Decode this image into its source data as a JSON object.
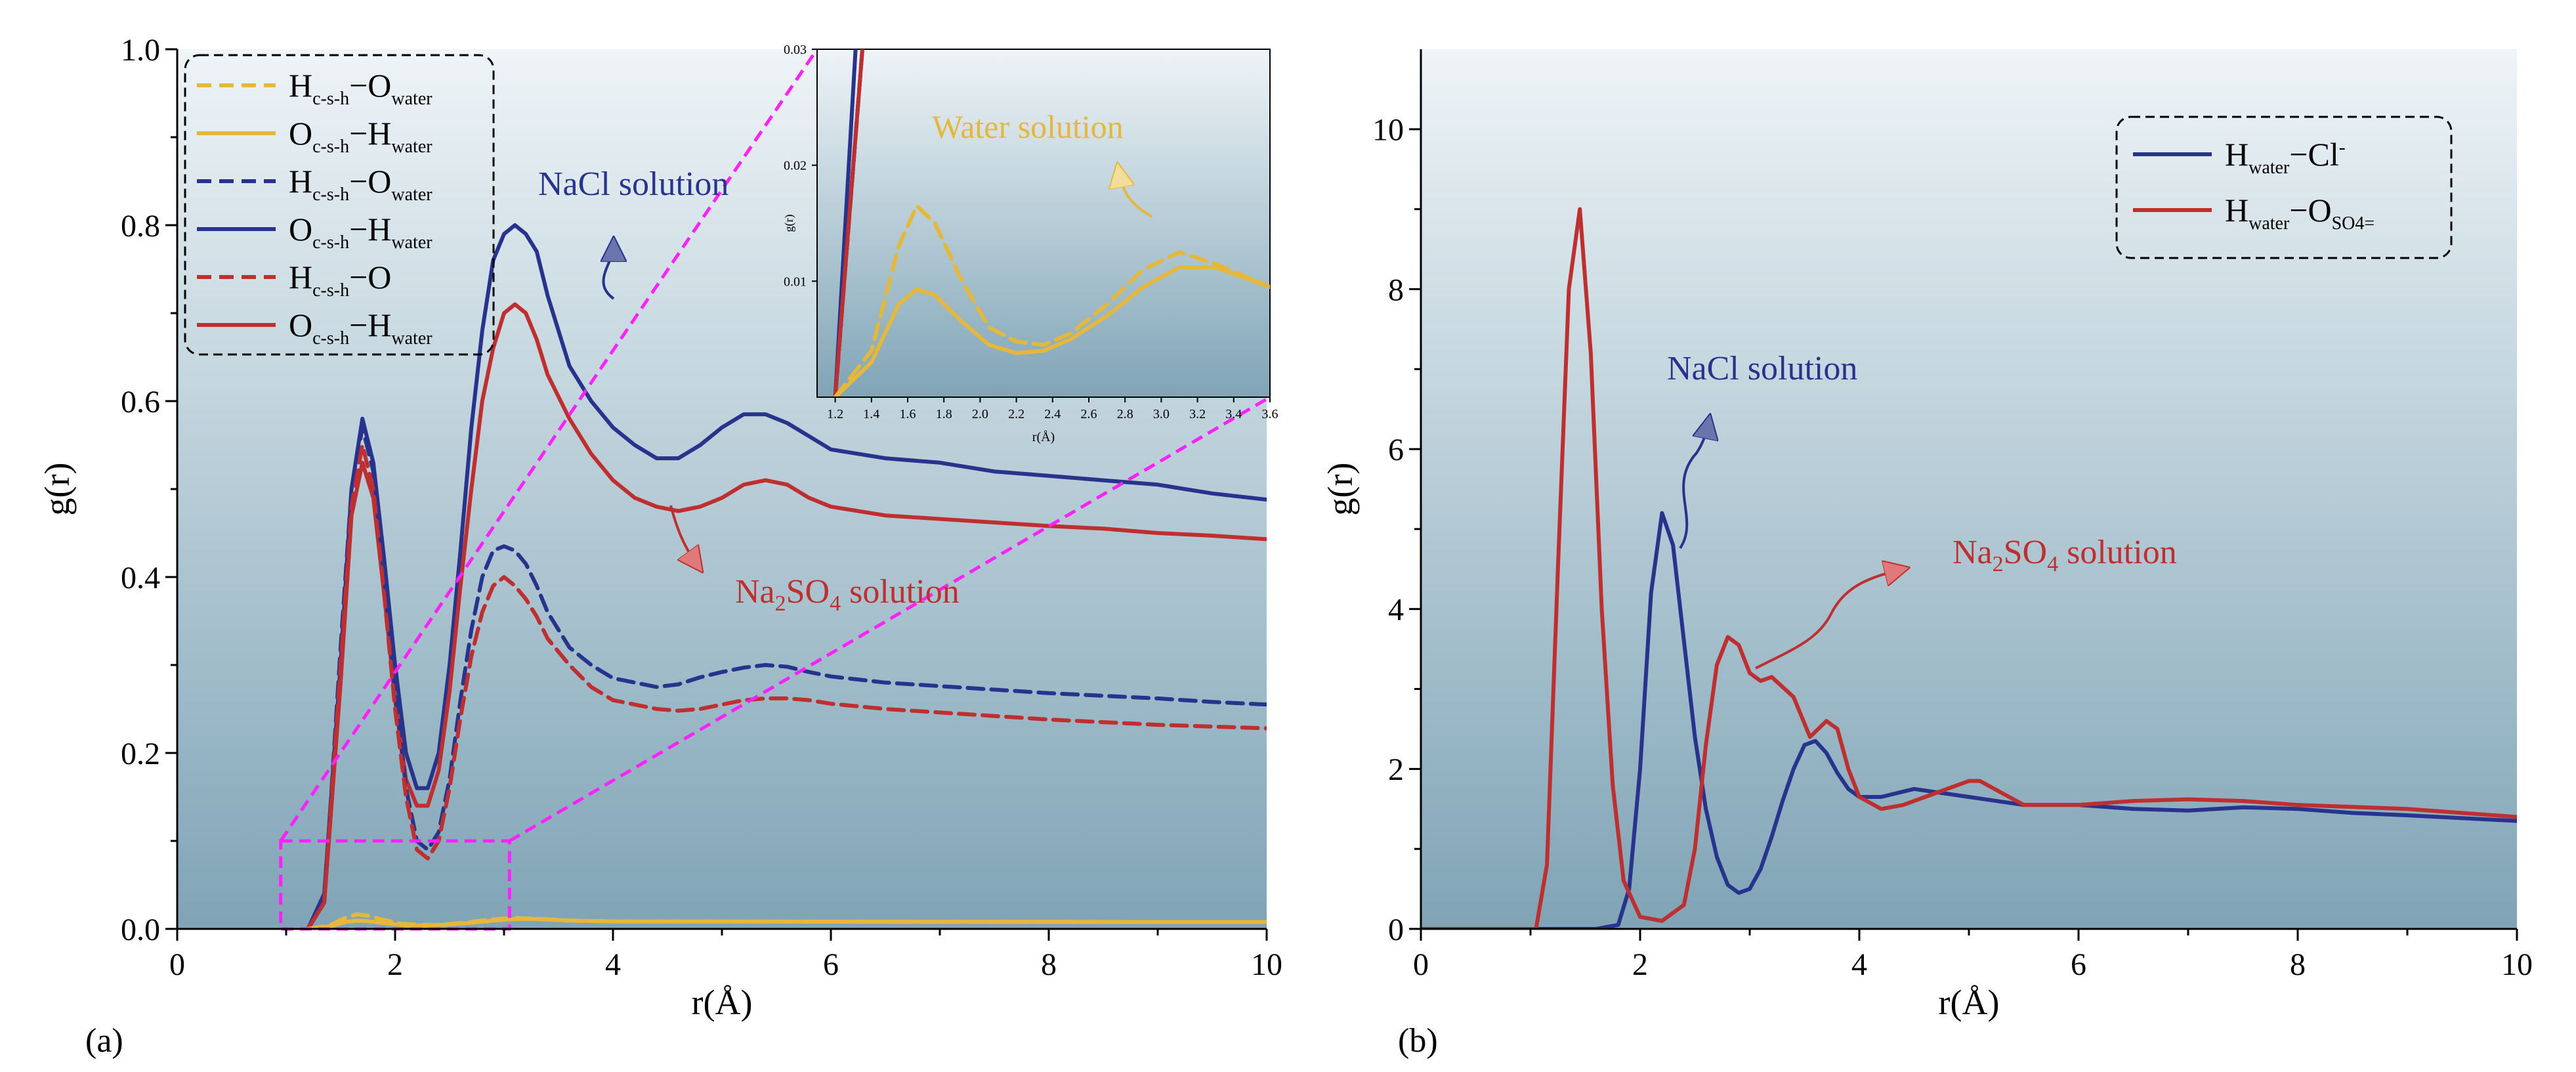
{
  "colors": {
    "bg_top": "#eef4f7",
    "bg_bottom": "#7fa4b6",
    "yellow": "#e6b83a",
    "blue": "#27338c",
    "red": "#bf2f2f",
    "magenta": "#ff22ff"
  },
  "chart_data": [
    {
      "id": "a",
      "type": "line",
      "panel_label": "(a)",
      "xlabel": "r(Å)",
      "ylabel": "g(r)",
      "xlim": [
        0,
        10
      ],
      "ylim": [
        0,
        1.0
      ],
      "xticks": [
        "0",
        "2",
        "4",
        "6",
        "8",
        "10"
      ],
      "yticks": [
        "0.0",
        "0.2",
        "0.4",
        "0.6",
        "0.8",
        "1.0"
      ],
      "legend": {
        "position": "top-left",
        "entries": [
          {
            "main1": "H",
            "sub1": "c-s-h",
            "dash": "−",
            "main2": "O",
            "sub2": "water",
            "color": "yellow",
            "style": "dashed"
          },
          {
            "main1": "O",
            "sub1": "c-s-h",
            "dash": "−",
            "main2": "H",
            "sub2": "water",
            "color": "yellow",
            "style": "solid"
          },
          {
            "main1": "H",
            "sub1": "c-s-h",
            "dash": "−",
            "main2": "O",
            "sub2": "water",
            "color": "blue",
            "style": "dashed"
          },
          {
            "main1": "O",
            "sub1": "c-s-h",
            "dash": "−",
            "main2": "H",
            "sub2": "water",
            "color": "blue",
            "style": "solid"
          },
          {
            "main1": "H",
            "sub1": "c-s-h",
            "dash": "−",
            "main2": "O",
            "sub2": "",
            "color": "red",
            "style": "dashed"
          },
          {
            "main1": "O",
            "sub1": "c-s-h",
            "dash": "−",
            "main2": "H",
            "sub2": "water",
            "color": "red",
            "style": "solid"
          }
        ]
      },
      "series": [
        {
          "name": "NaCl O(c-s-h)-H(water)",
          "color": "blue",
          "style": "solid",
          "x": [
            1.2,
            1.35,
            1.5,
            1.6,
            1.7,
            1.8,
            1.9,
            2.0,
            2.1,
            2.2,
            2.3,
            2.4,
            2.5,
            2.6,
            2.7,
            2.8,
            2.9,
            3.0,
            3.1,
            3.2,
            3.3,
            3.4,
            3.6,
            3.8,
            4.0,
            4.2,
            4.4,
            4.6,
            4.8,
            5.0,
            5.2,
            5.4,
            5.6,
            5.8,
            6.0,
            6.5,
            7.0,
            7.5,
            8.0,
            8.5,
            9.0,
            9.5,
            10.0
          ],
          "y": [
            0.0,
            0.04,
            0.3,
            0.5,
            0.58,
            0.53,
            0.42,
            0.3,
            0.2,
            0.16,
            0.16,
            0.2,
            0.3,
            0.43,
            0.57,
            0.68,
            0.76,
            0.79,
            0.8,
            0.79,
            0.77,
            0.72,
            0.64,
            0.6,
            0.57,
            0.55,
            0.535,
            0.535,
            0.55,
            0.57,
            0.585,
            0.585,
            0.575,
            0.56,
            0.545,
            0.535,
            0.53,
            0.52,
            0.515,
            0.51,
            0.505,
            0.495,
            0.488
          ]
        },
        {
          "name": "Na2SO4 O(c-s-h)-H(water)",
          "color": "red",
          "style": "solid",
          "x": [
            1.2,
            1.35,
            1.5,
            1.6,
            1.7,
            1.8,
            1.9,
            2.0,
            2.1,
            2.2,
            2.3,
            2.4,
            2.5,
            2.6,
            2.7,
            2.8,
            2.9,
            3.0,
            3.1,
            3.2,
            3.3,
            3.4,
            3.6,
            3.8,
            4.0,
            4.2,
            4.4,
            4.6,
            4.8,
            5.0,
            5.2,
            5.4,
            5.6,
            5.8,
            6.0,
            6.5,
            7.0,
            7.5,
            8.0,
            8.5,
            9.0,
            9.5,
            10.0
          ],
          "y": [
            0.0,
            0.03,
            0.28,
            0.47,
            0.53,
            0.49,
            0.38,
            0.26,
            0.17,
            0.14,
            0.14,
            0.18,
            0.27,
            0.39,
            0.5,
            0.6,
            0.66,
            0.7,
            0.71,
            0.7,
            0.67,
            0.63,
            0.58,
            0.54,
            0.51,
            0.49,
            0.48,
            0.475,
            0.48,
            0.49,
            0.505,
            0.51,
            0.505,
            0.49,
            0.48,
            0.47,
            0.466,
            0.462,
            0.458,
            0.455,
            0.45,
            0.447,
            0.443
          ]
        },
        {
          "name": "NaCl H(c-s-h)-O(water)",
          "color": "blue",
          "style": "dashed",
          "x": [
            1.2,
            1.35,
            1.5,
            1.6,
            1.7,
            1.8,
            1.9,
            2.0,
            2.1,
            2.2,
            2.3,
            2.4,
            2.5,
            2.6,
            2.7,
            2.8,
            2.9,
            3.0,
            3.1,
            3.2,
            3.3,
            3.4,
            3.6,
            3.8,
            4.0,
            4.2,
            4.4,
            4.6,
            4.8,
            5.0,
            5.2,
            5.4,
            5.6,
            5.8,
            6.0,
            6.5,
            7.0,
            7.5,
            8.0,
            8.5,
            9.0,
            9.5,
            10.0
          ],
          "y": [
            0.0,
            0.03,
            0.32,
            0.5,
            0.57,
            0.52,
            0.4,
            0.27,
            0.16,
            0.1,
            0.09,
            0.11,
            0.17,
            0.26,
            0.34,
            0.4,
            0.43,
            0.435,
            0.43,
            0.415,
            0.39,
            0.36,
            0.32,
            0.3,
            0.285,
            0.28,
            0.275,
            0.278,
            0.286,
            0.292,
            0.297,
            0.3,
            0.298,
            0.292,
            0.287,
            0.28,
            0.276,
            0.272,
            0.268,
            0.265,
            0.262,
            0.258,
            0.255
          ]
        },
        {
          "name": "Na2SO4 H(c-s-h)-O",
          "color": "red",
          "style": "dashed",
          "x": [
            1.2,
            1.35,
            1.5,
            1.6,
            1.7,
            1.8,
            1.9,
            2.0,
            2.1,
            2.2,
            2.3,
            2.4,
            2.5,
            2.6,
            2.7,
            2.8,
            2.9,
            3.0,
            3.1,
            3.2,
            3.3,
            3.4,
            3.6,
            3.8,
            4.0,
            4.2,
            4.4,
            4.6,
            4.8,
            5.0,
            5.2,
            5.4,
            5.6,
            5.8,
            6.0,
            6.5,
            7.0,
            7.5,
            8.0,
            8.5,
            9.0,
            9.5,
            10.0
          ],
          "y": [
            0.0,
            0.03,
            0.3,
            0.48,
            0.55,
            0.5,
            0.38,
            0.25,
            0.15,
            0.09,
            0.08,
            0.1,
            0.16,
            0.24,
            0.31,
            0.36,
            0.39,
            0.4,
            0.39,
            0.375,
            0.355,
            0.33,
            0.3,
            0.275,
            0.26,
            0.255,
            0.25,
            0.248,
            0.25,
            0.255,
            0.26,
            0.262,
            0.262,
            0.26,
            0.256,
            0.25,
            0.246,
            0.242,
            0.238,
            0.235,
            0.232,
            0.23,
            0.228
          ]
        },
        {
          "name": "Water H(c-s-h)-O(water)",
          "color": "yellow",
          "style": "dashed",
          "x": [
            1.2,
            1.4,
            1.55,
            1.65,
            1.75,
            1.9,
            2.05,
            2.2,
            2.35,
            2.5,
            2.7,
            2.9,
            3.1,
            3.3,
            3.6,
            4.0,
            5.0,
            6.0,
            7.0,
            8.0,
            9.0,
            10.0
          ],
          "y": [
            0.0,
            0.004,
            0.013,
            0.0165,
            0.015,
            0.01,
            0.006,
            0.0048,
            0.0045,
            0.0055,
            0.008,
            0.011,
            0.0125,
            0.0115,
            0.0095,
            0.0085,
            0.0085,
            0.0082,
            0.008,
            0.008,
            0.0078,
            0.0078
          ]
        },
        {
          "name": "Water O(c-s-h)-H(water)",
          "color": "yellow",
          "style": "solid",
          "x": [
            1.2,
            1.4,
            1.55,
            1.65,
            1.75,
            1.9,
            2.05,
            2.2,
            2.35,
            2.5,
            2.7,
            2.9,
            3.1,
            3.3,
            3.6,
            4.0,
            5.0,
            6.0,
            7.0,
            8.0,
            9.0,
            10.0
          ],
          "y": [
            0.0,
            0.003,
            0.008,
            0.0093,
            0.0088,
            0.0065,
            0.0045,
            0.0038,
            0.004,
            0.005,
            0.007,
            0.0095,
            0.0112,
            0.0112,
            0.0095,
            0.0085,
            0.0085,
            0.0082,
            0.008,
            0.008,
            0.0078,
            0.0078
          ]
        }
      ],
      "annotations": [
        {
          "text": "NaCl solution",
          "color": "blue"
        },
        {
          "main": "Na",
          "sub1": "2",
          "mid": "SO",
          "sub2": "4",
          "tail": " solution",
          "color": "red"
        }
      ],
      "zoom_box": {
        "x": [
          0.95,
          3.05
        ],
        "y": [
          0,
          0.1
        ]
      },
      "inset": {
        "xlim": [
          1.1,
          3.6
        ],
        "ylim": [
          0,
          0.03
        ],
        "xlabel": "r(Å)",
        "ylabel": "g(r)",
        "xticks": [
          "1.2",
          "1.4",
          "1.6",
          "1.8",
          "2.0",
          "2.2",
          "2.4",
          "2.6",
          "2.8",
          "3.0",
          "3.2",
          "3.4",
          "3.6"
        ],
        "yticks": [
          "0.01",
          "0.02",
          "0.03"
        ],
        "annotation": "Water solution"
      }
    },
    {
      "id": "b",
      "type": "line",
      "panel_label": "(b)",
      "xlabel": "r(Å)",
      "ylabel": "g(r)",
      "xlim": [
        0,
        10
      ],
      "ylim": [
        0,
        11
      ],
      "xticks": [
        "0",
        "2",
        "4",
        "6",
        "8",
        "10"
      ],
      "yticks": [
        "0",
        "2",
        "4",
        "6",
        "8",
        "10"
      ],
      "legend": {
        "position": "top-right",
        "entries": [
          {
            "main1": "H",
            "sub1": "water",
            "dash": "−",
            "main2": "Cl",
            "sup2": "-",
            "color": "blue",
            "style": "solid"
          },
          {
            "main1": "H",
            "sub1": "water",
            "dash": "−",
            "main2": "O",
            "sub2": "SO4=",
            "color": "red",
            "style": "solid"
          }
        ]
      },
      "series": [
        {
          "name": "H(water)-Cl-",
          "color": "blue",
          "style": "solid",
          "x": [
            0,
            1.6,
            1.8,
            1.9,
            2.0,
            2.1,
            2.2,
            2.3,
            2.4,
            2.5,
            2.6,
            2.7,
            2.8,
            2.9,
            3.0,
            3.1,
            3.2,
            3.3,
            3.4,
            3.5,
            3.6,
            3.7,
            3.8,
            3.9,
            4.0,
            4.2,
            4.5,
            5.0,
            5.5,
            6.0,
            6.5,
            7.0,
            7.5,
            8.0,
            8.5,
            9.0,
            10.0
          ],
          "y": [
            0,
            0,
            0.05,
            0.5,
            2.0,
            4.2,
            5.2,
            4.8,
            3.6,
            2.4,
            1.5,
            0.9,
            0.55,
            0.45,
            0.5,
            0.75,
            1.15,
            1.6,
            2.0,
            2.3,
            2.35,
            2.2,
            1.95,
            1.75,
            1.65,
            1.65,
            1.75,
            1.65,
            1.55,
            1.55,
            1.5,
            1.48,
            1.52,
            1.5,
            1.45,
            1.42,
            1.35
          ]
        },
        {
          "name": "H(water)-O(SO4=)",
          "color": "red",
          "style": "solid",
          "x": [
            0,
            1.05,
            1.15,
            1.25,
            1.35,
            1.45,
            1.55,
            1.65,
            1.75,
            1.85,
            2.0,
            2.2,
            2.4,
            2.5,
            2.6,
            2.7,
            2.8,
            2.9,
            3.0,
            3.1,
            3.2,
            3.4,
            3.55,
            3.7,
            3.8,
            3.9,
            4.0,
            4.2,
            4.4,
            4.6,
            4.8,
            5.0,
            5.1,
            5.3,
            5.5,
            6.0,
            6.5,
            7.0,
            7.5,
            8.0,
            9.0,
            10.0
          ],
          "y": [
            0,
            0,
            0.8,
            4.5,
            8.0,
            9.0,
            7.2,
            4.0,
            1.8,
            0.6,
            0.15,
            0.1,
            0.3,
            1.0,
            2.3,
            3.3,
            3.65,
            3.55,
            3.2,
            3.1,
            3.15,
            2.9,
            2.4,
            2.6,
            2.5,
            2.0,
            1.65,
            1.5,
            1.55,
            1.65,
            1.75,
            1.85,
            1.85,
            1.7,
            1.55,
            1.55,
            1.6,
            1.62,
            1.6,
            1.55,
            1.5,
            1.4
          ]
        }
      ],
      "annotations": [
        {
          "text": "NaCl solution",
          "color": "blue"
        },
        {
          "main": "Na",
          "sub1": "2",
          "mid": "SO",
          "sub2": "4",
          "tail": " solution",
          "color": "red"
        }
      ]
    }
  ]
}
